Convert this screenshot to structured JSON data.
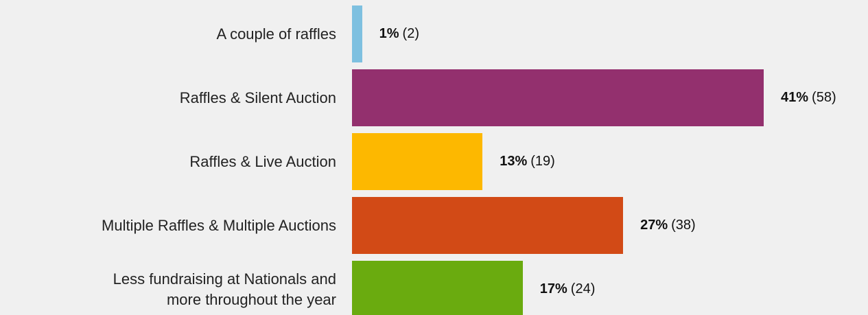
{
  "chart_data": {
    "type": "hbar",
    "categories": [
      "A couple of raffles",
      "Raffles & Silent Auction",
      "Raffles & Live Auction",
      "Multiple Raffles  & Multiple Auctions",
      "Less fundraising at Nationals and\nmore throughout the year"
    ],
    "values": [
      1,
      41,
      13,
      27,
      17
    ],
    "value_labels": [
      "1%",
      "41%",
      "13%",
      "27%",
      "17%"
    ],
    "count_labels": [
      "(2)",
      "(58)",
      "(19)",
      "(38)",
      "(24)"
    ],
    "colors": [
      "#7ec0e0",
      "#93306e",
      "#fdb800",
      "#d24a16",
      "#6aab0f"
    ]
  }
}
